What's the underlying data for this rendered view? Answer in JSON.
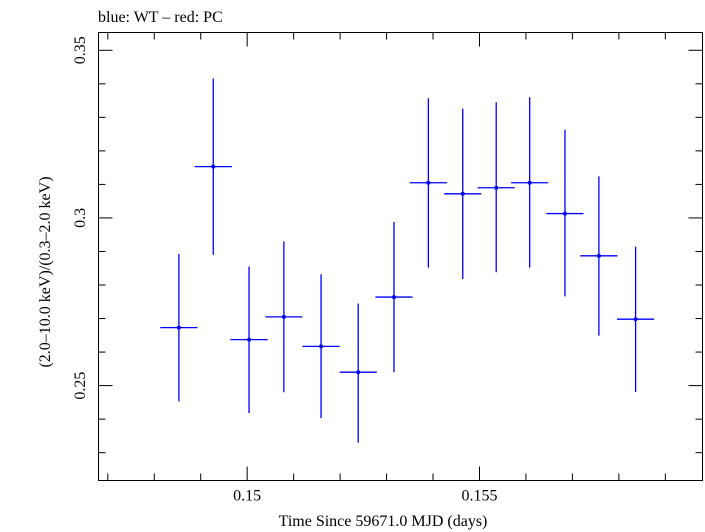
{
  "chart_data": {
    "type": "scatter",
    "title": "blue: WT – red: PC",
    "xlabel": "Time Since 59671.0 MJD (days)",
    "ylabel": "(2.0–10.0 keV)/(0.3–2.0 keV)",
    "xlim": [
      0.1468,
      0.1598
    ],
    "ylim": [
      0.2217,
      0.3553
    ],
    "x_ticks": [
      0.15,
      0.155
    ],
    "x_tick_labels": [
      "0.15",
      "0.155"
    ],
    "y_ticks": [
      0.25,
      0.3,
      0.35
    ],
    "y_tick_labels": [
      "0.25",
      "0.3",
      "0.35"
    ],
    "grid": false,
    "series": [
      {
        "color": "#0000ff",
        "points": [
          {
            "x": 0.14853,
            "xerr": 0.0004,
            "y": 0.2673,
            "ylo": 0.2453,
            "yhi": 0.2893
          },
          {
            "x": 0.14927,
            "xerr": 0.0004,
            "y": 0.3153,
            "ylo": 0.289,
            "yhi": 0.3416
          },
          {
            "x": 0.15004,
            "xerr": 0.0004,
            "y": 0.2637,
            "ylo": 0.2418,
            "yhi": 0.2855
          },
          {
            "x": 0.15079,
            "xerr": 0.0004,
            "y": 0.2705,
            "ylo": 0.248,
            "yhi": 0.293
          },
          {
            "x": 0.15159,
            "xerr": 0.0004,
            "y": 0.2617,
            "ylo": 0.2403,
            "yhi": 0.2832
          },
          {
            "x": 0.15239,
            "xerr": 0.0004,
            "y": 0.254,
            "ylo": 0.233,
            "yhi": 0.2745
          },
          {
            "x": 0.15316,
            "xerr": 0.0004,
            "y": 0.2764,
            "ylo": 0.254,
            "yhi": 0.2988
          },
          {
            "x": 0.1539,
            "xerr": 0.0004,
            "y": 0.3105,
            "ylo": 0.2852,
            "yhi": 0.3357
          },
          {
            "x": 0.15464,
            "xerr": 0.0004,
            "y": 0.3072,
            "ylo": 0.2818,
            "yhi": 0.3326
          },
          {
            "x": 0.15536,
            "xerr": 0.0004,
            "y": 0.309,
            "ylo": 0.2838,
            "yhi": 0.3345
          },
          {
            "x": 0.15608,
            "xerr": 0.0004,
            "y": 0.3105,
            "ylo": 0.2852,
            "yhi": 0.336
          },
          {
            "x": 0.15684,
            "xerr": 0.0004,
            "y": 0.3013,
            "ylo": 0.2766,
            "yhi": 0.3263
          },
          {
            "x": 0.15757,
            "xerr": 0.0004,
            "y": 0.2887,
            "ylo": 0.2649,
            "yhi": 0.3124
          },
          {
            "x": 0.15836,
            "xerr": 0.0004,
            "y": 0.2698,
            "ylo": 0.2481,
            "yhi": 0.2914
          }
        ]
      }
    ]
  }
}
